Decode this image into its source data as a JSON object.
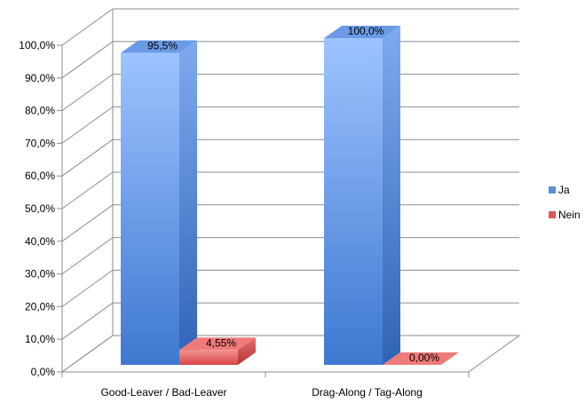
{
  "chart_data": {
    "type": "bar",
    "title": "",
    "xlabel": "",
    "ylabel": "",
    "categories": [
      "Good-Leaver / Bad-Leaver",
      "Drag-Along / Tag-Along"
    ],
    "series": [
      {
        "name": "Ja",
        "values": [
          95.5,
          100.0
        ],
        "labels": [
          "95,5%",
          "100,0%"
        ],
        "color": "#5b8fdc"
      },
      {
        "name": "Nein",
        "values": [
          4.55,
          0.0
        ],
        "labels": [
          "4,55%",
          "0,00%"
        ],
        "color": "#e05a5a"
      }
    ],
    "ylim": [
      0,
      100
    ],
    "yticks": [
      "0,0%",
      "10,0%",
      "20,0%",
      "30,0%",
      "40,0%",
      "50,0%",
      "60,0%",
      "70,0%",
      "80,0%",
      "90,0%",
      "100,0%"
    ],
    "grid": true,
    "legend": "right",
    "three_d": true
  }
}
